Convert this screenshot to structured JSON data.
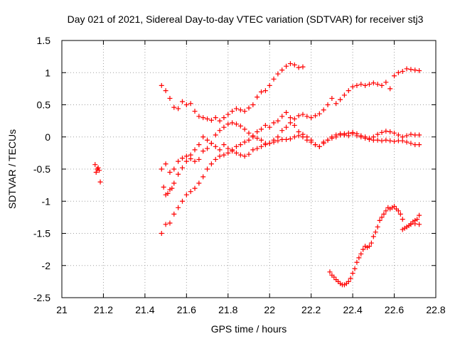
{
  "chart_data": {
    "type": "scatter",
    "title": "Day 021 of 2021, Sidereal Day-to-day VTEC variation (SDTVAR) for receiver stj3",
    "xlabel": "GPS time / hours",
    "ylabel": "SDTVAR / TECUs",
    "xlim": [
      21,
      22.8
    ],
    "ylim": [
      -2.5,
      1.5
    ],
    "xticks": [
      21,
      21.2,
      21.4,
      21.6,
      21.8,
      22,
      22.2,
      22.4,
      22.6,
      22.8
    ],
    "xtick_labels": [
      "21",
      "21.2",
      "21.4",
      "21.6",
      "21.8",
      "22",
      "22.2",
      "22.4",
      "22.6",
      "22.8"
    ],
    "yticks": [
      -2.5,
      -2,
      -1.5,
      -1,
      -0.5,
      0,
      0.5,
      1,
      1.5
    ],
    "ytick_labels": [
      "-2.5",
      "-2",
      "-1.5",
      "-1",
      "-0.5",
      "0",
      "0.5",
      "1",
      "1.5"
    ],
    "grid": true,
    "marker": "plus",
    "color": "#ff0000",
    "series": [
      {
        "x": [
          21.16,
          21.165,
          21.17,
          21.175,
          21.18,
          21.185
        ],
        "y": [
          -0.43,
          -0.55,
          -0.5,
          -0.48,
          -0.52,
          -0.7
        ]
      },
      {
        "x": [
          21.48,
          21.5,
          21.52,
          21.54,
          21.56,
          21.58,
          21.6,
          21.62,
          21.64,
          21.66,
          21.68,
          21.7,
          21.72,
          21.74,
          21.76,
          21.78,
          21.8,
          21.82,
          21.84,
          21.86,
          21.88,
          21.9,
          21.92,
          21.94,
          21.96,
          21.98,
          22.0,
          22.02,
          22.04,
          22.06,
          22.08,
          22.1,
          22.12,
          22.14,
          22.16
        ],
        "y": [
          0.8,
          0.72,
          0.6,
          0.46,
          0.44,
          0.55,
          0.5,
          0.52,
          0.4,
          0.32,
          0.3,
          0.28,
          0.26,
          0.3,
          0.25,
          0.3,
          0.35,
          0.4,
          0.44,
          0.42,
          0.4,
          0.45,
          0.5,
          0.62,
          0.7,
          0.72,
          0.8,
          0.9,
          0.98,
          1.04,
          1.1,
          1.14,
          1.12,
          1.08,
          1.09
        ]
      },
      {
        "x": [
          21.48,
          21.5,
          21.52,
          21.54,
          21.56,
          21.58,
          21.6,
          21.62,
          21.64,
          21.66,
          21.68,
          21.7,
          21.72,
          21.74,
          21.76,
          21.78,
          21.8,
          21.82,
          21.84,
          21.86,
          21.88,
          21.9,
          21.92,
          21.94,
          21.96,
          21.98,
          22.0,
          22.02,
          22.04,
          22.06,
          22.08,
          22.1,
          22.12,
          22.14,
          22.16,
          22.18,
          22.2,
          22.22,
          22.24,
          22.26,
          22.28,
          22.3,
          22.32,
          22.34,
          22.36,
          22.38,
          22.4,
          22.42,
          22.44,
          22.46,
          22.48,
          22.5,
          22.52,
          22.54,
          22.56,
          22.58,
          22.6,
          22.62,
          22.64,
          22.66,
          22.68,
          22.7,
          22.72
        ],
        "y": [
          -0.5,
          -0.42,
          -0.55,
          -0.5,
          -0.38,
          -0.33,
          -0.38,
          -0.28,
          -0.2,
          -0.12,
          0.0,
          -0.05,
          -0.1,
          0.03,
          0.1,
          0.15,
          0.2,
          0.22,
          0.2,
          0.17,
          0.12,
          0.06,
          0.02,
          -0.02,
          -0.05,
          -0.1,
          -0.1,
          -0.05,
          0.0,
          0.1,
          0.15,
          0.22,
          0.28,
          0.33,
          0.35,
          0.32,
          0.3,
          0.33,
          0.36,
          0.42,
          0.5,
          0.6,
          0.52,
          0.58,
          0.65,
          0.72,
          0.78,
          0.8,
          0.82,
          0.8,
          0.82,
          0.84,
          0.82,
          0.8,
          0.85,
          0.75,
          0.95,
          1.0,
          1.02,
          1.06,
          1.05,
          1.04,
          1.03
        ]
      },
      {
        "x": [
          21.5,
          21.52,
          21.54,
          21.56,
          21.58,
          21.6,
          21.62,
          21.64,
          21.66,
          21.68,
          21.7,
          21.72,
          21.74,
          21.76,
          21.78,
          21.8,
          21.82,
          21.84,
          21.86,
          21.88,
          21.9,
          21.92,
          21.94,
          21.96,
          21.98,
          22.0,
          22.02,
          22.04,
          22.06,
          22.08,
          22.1,
          22.12,
          22.14,
          22.16,
          22.18,
          22.2,
          22.22,
          22.24,
          22.26,
          22.28,
          22.3,
          22.32,
          22.34,
          22.36,
          22.38,
          22.4,
          22.42,
          22.44,
          22.46,
          22.48,
          22.5,
          22.52,
          22.54,
          22.56,
          22.58,
          22.6,
          22.62,
          22.64,
          22.66,
          22.68,
          22.7,
          22.72
        ],
        "y": [
          -0.9,
          -0.82,
          -0.72,
          -0.58,
          -0.48,
          -0.3,
          -0.34,
          -0.38,
          -0.35,
          -0.22,
          -0.18,
          -0.1,
          -0.15,
          -0.2,
          -0.12,
          -0.18,
          -0.2,
          -0.15,
          -0.12,
          -0.08,
          -0.05,
          0.0,
          0.08,
          0.12,
          0.18,
          0.15,
          0.22,
          0.25,
          0.32,
          0.38,
          0.3,
          0.18,
          0.08,
          0.0,
          -0.05,
          -0.08,
          -0.12,
          -0.15,
          -0.1,
          -0.05,
          0.0,
          0.03,
          0.05,
          0.03,
          0.02,
          0.05,
          0.02,
          0.0,
          -0.02,
          -0.04,
          -0.05,
          -0.05,
          -0.06,
          -0.05,
          -0.06,
          -0.07,
          -0.06,
          -0.06,
          -0.08,
          -0.1,
          -0.12,
          -0.12
        ]
      },
      {
        "x": [
          21.48,
          21.5,
          21.52,
          21.54,
          21.56,
          21.58,
          21.6,
          21.62,
          21.64,
          21.66,
          21.68,
          21.7,
          21.72,
          21.74,
          21.76,
          21.78,
          21.8,
          21.82,
          21.84,
          21.86,
          21.88,
          21.9,
          21.92,
          21.94,
          21.96,
          21.98,
          22.0,
          22.02,
          22.04,
          22.06,
          22.08,
          22.1,
          22.12,
          22.14,
          22.16,
          22.18,
          22.2,
          22.22,
          22.24,
          22.26,
          22.28,
          22.3,
          22.32,
          22.34,
          22.36,
          22.38,
          22.4,
          22.42,
          22.44,
          22.46,
          22.48,
          22.5,
          22.52,
          22.54,
          22.56,
          22.58,
          22.6,
          22.62,
          22.64,
          22.66,
          22.68,
          22.7,
          22.72
        ],
        "y": [
          -1.5,
          -1.36,
          -1.34,
          -1.2,
          -1.1,
          -1.0,
          -0.9,
          -0.85,
          -0.8,
          -0.72,
          -0.62,
          -0.5,
          -0.42,
          -0.35,
          -0.3,
          -0.28,
          -0.25,
          -0.22,
          -0.25,
          -0.28,
          -0.3,
          -0.27,
          -0.2,
          -0.18,
          -0.15,
          -0.12,
          -0.1,
          -0.08,
          -0.06,
          -0.04,
          -0.04,
          -0.03,
          0.0,
          0.02,
          0.04,
          0.0,
          -0.05,
          -0.12,
          -0.15,
          -0.08,
          -0.05,
          -0.02,
          0.0,
          0.03,
          0.05,
          0.06,
          0.07,
          0.05,
          0.02,
          0.0,
          -0.02,
          0.0,
          0.04,
          0.07,
          0.09,
          0.08,
          0.06,
          0.03,
          0.0,
          0.02,
          0.04,
          0.03,
          0.03
        ]
      },
      {
        "x": [
          21.49,
          21.51,
          21.53
        ],
        "y": [
          -0.78,
          -0.88,
          -0.8
        ]
      },
      {
        "x": [
          22.29,
          22.3,
          22.31,
          22.32,
          22.33,
          22.34,
          22.35,
          22.36,
          22.37,
          22.38,
          22.39,
          22.4,
          22.41,
          22.42,
          22.43,
          22.44,
          22.45,
          22.46,
          22.47,
          22.48,
          22.49,
          22.5,
          22.51,
          22.52,
          22.53,
          22.54,
          22.55,
          22.56,
          22.57,
          22.58,
          22.59,
          22.6,
          22.61,
          22.62,
          22.63,
          22.64,
          22.65,
          22.66,
          22.67,
          22.68,
          22.69,
          22.7,
          22.71,
          22.72
        ],
        "y": [
          -2.1,
          -2.15,
          -2.18,
          -2.22,
          -2.25,
          -2.28,
          -2.3,
          -2.3,
          -2.28,
          -2.25,
          -2.2,
          -2.12,
          -2.05,
          -1.95,
          -1.88,
          -1.82,
          -1.75,
          -1.7,
          -1.72,
          -1.7,
          -1.65,
          -1.55,
          -1.48,
          -1.4,
          -1.3,
          -1.25,
          -1.2,
          -1.15,
          -1.1,
          -1.12,
          -1.1,
          -1.08,
          -1.12,
          -1.15,
          -1.2,
          -1.28,
          -1.42,
          -1.4,
          -1.38,
          -1.35,
          -1.32,
          -1.3,
          -1.28,
          -1.22
        ]
      },
      {
        "x": [
          22.64,
          22.66,
          22.68,
          22.7,
          22.72
        ],
        "y": [
          -1.44,
          -1.4,
          -1.36,
          -1.35,
          -1.36
        ]
      }
    ]
  }
}
